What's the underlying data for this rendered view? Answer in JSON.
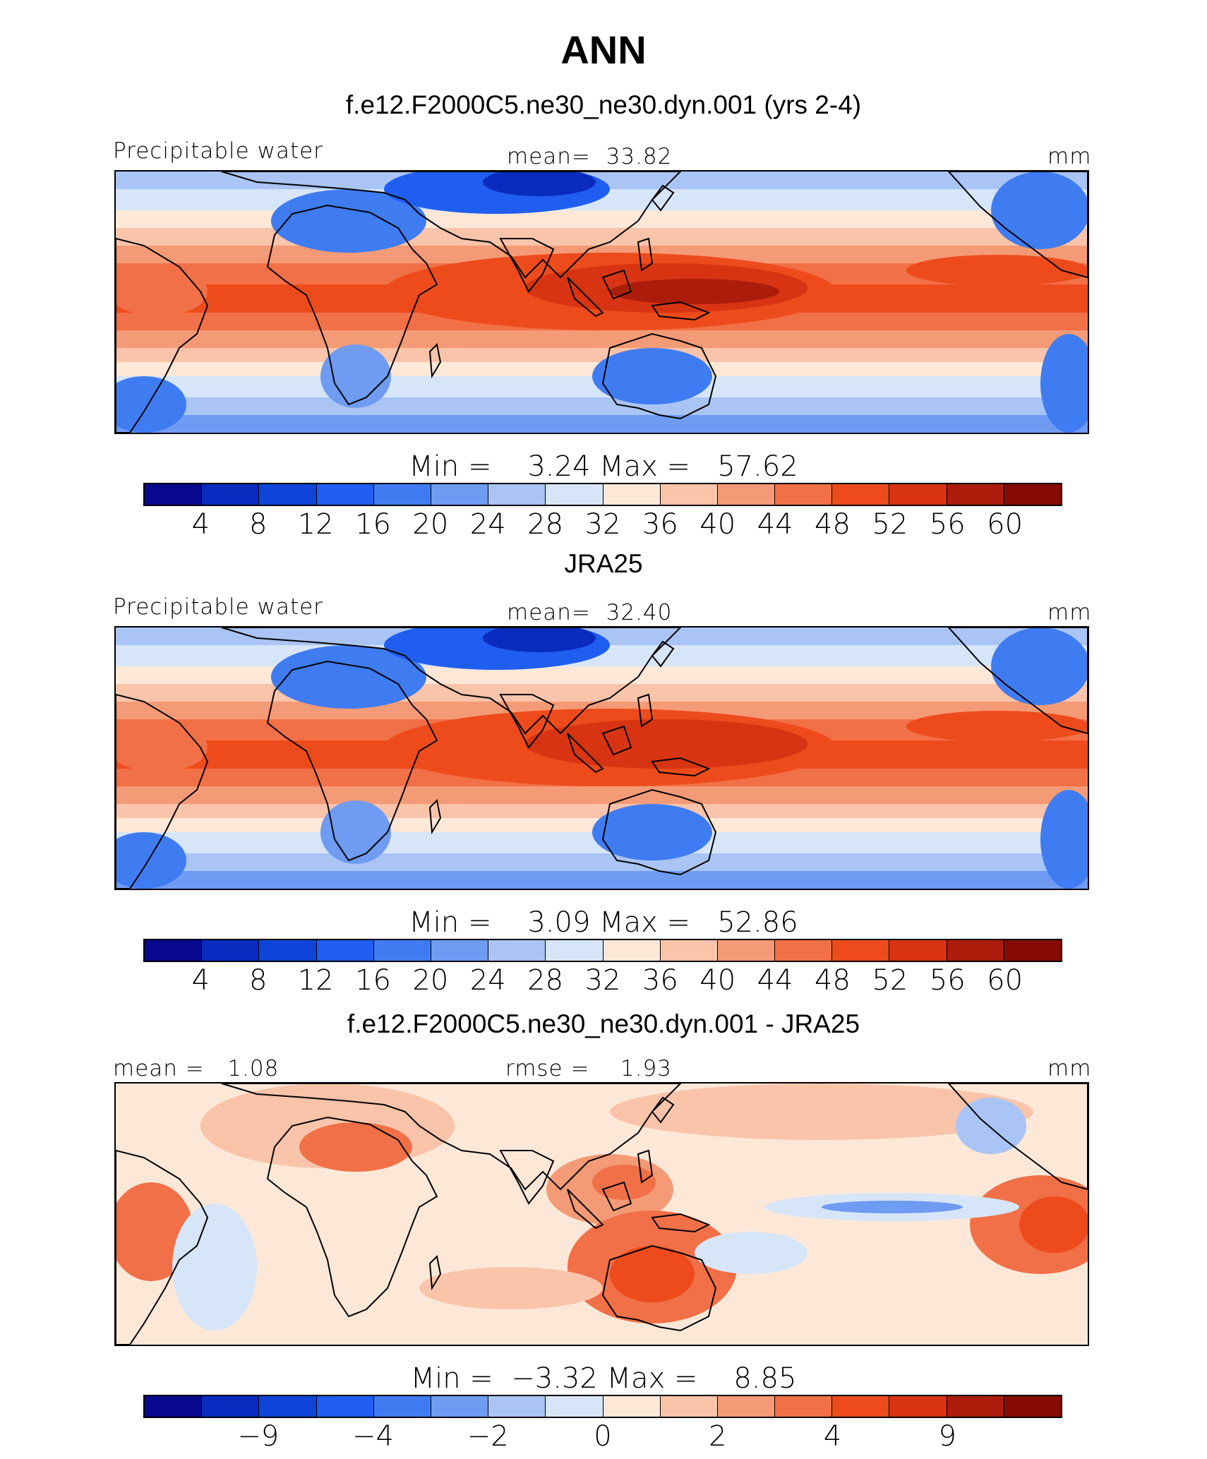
{
  "title": "ANN",
  "panels": [
    {
      "title": "f.e12.F2000C5.ne30_ne30.dyn.001 (yrs 2-4)",
      "left_label": "Precipitable water",
      "center_label": "mean=  33.82",
      "right_label": "mm",
      "min_max": "Min =    3.24 Max =   57.62",
      "tick_labels": [
        "4",
        "8",
        "12",
        "16",
        "20",
        "24",
        "28",
        "32",
        "36",
        "40",
        "44",
        "48",
        "52",
        "56",
        "60"
      ]
    },
    {
      "title": "JRA25",
      "left_label": "Precipitable water",
      "center_label": "mean=  32.40",
      "right_label": "mm",
      "min_max": "Min =    3.09 Max =   52.86",
      "tick_labels": [
        "4",
        "8",
        "12",
        "16",
        "20",
        "24",
        "28",
        "32",
        "36",
        "40",
        "44",
        "48",
        "52",
        "56",
        "60"
      ]
    },
    {
      "title": "f.e12.F2000C5.ne30_ne30.dyn.001 - JRA25",
      "left_label": "mean =   1.08",
      "center_label": "rmse =    1.93",
      "right_label": "mm",
      "min_max": "Min =  −3.32 Max =    8.85",
      "tick_labels": [
        "−9",
        "−4",
        "−2",
        "0",
        "2",
        "4",
        "9"
      ]
    }
  ],
  "colormap": [
    "#08088f",
    "#0a2bbf",
    "#0f44d9",
    "#1f5ef0",
    "#3f7cf2",
    "#6f9bf2",
    "#a9c4f5",
    "#d7e5f8",
    "#fde8d8",
    "#f9c4aa",
    "#f59a76",
    "#f27047",
    "#ee4b1d",
    "#d83413",
    "#ac1c0b",
    "#870a04"
  ]
}
